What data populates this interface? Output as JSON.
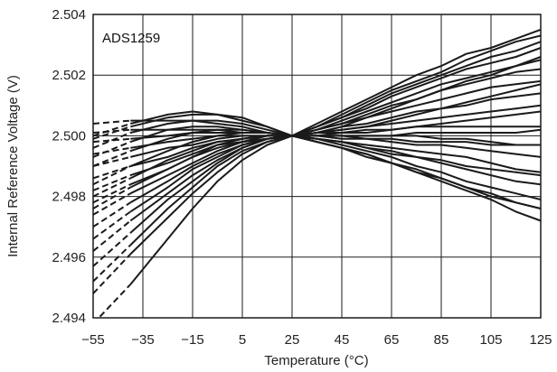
{
  "chart_data": {
    "type": "line",
    "title": "",
    "xlabel": "Temperature (°C)",
    "ylabel": "Internal Reference Voltage (V)",
    "annotation": "ADS1259",
    "xlim": [
      -55,
      125
    ],
    "ylim": [
      2.494,
      2.504
    ],
    "x_ticks": [
      -55,
      -35,
      -15,
      5,
      25,
      45,
      65,
      85,
      105,
      125
    ],
    "x_tick_labels": [
      "−55",
      "−35",
      "−15",
      "5",
      "25",
      "45",
      "65",
      "85",
      "105",
      "125"
    ],
    "y_ticks": [
      2.494,
      2.496,
      2.498,
      2.5,
      2.502,
      2.504
    ],
    "y_tick_labels": [
      "2.494",
      "2.496",
      "2.498",
      "2.500",
      "2.502",
      "2.504"
    ],
    "grid": true,
    "line_color": "#1a1a1a",
    "extrapolated_below": -40,
    "x": [
      -55,
      -40,
      -25,
      -15,
      -5,
      5,
      15,
      25,
      35,
      45,
      55,
      65,
      75,
      85,
      95,
      105,
      115,
      125
    ],
    "series": [
      {
        "values": [
          2.4938,
          2.4951,
          2.4966,
          2.4976,
          2.4985,
          2.4992,
          2.4997,
          2.5,
          2.5004,
          2.5008,
          2.5012,
          2.5016,
          2.502,
          2.5023,
          2.5027,
          2.5029,
          2.5032,
          2.5035
        ]
      },
      {
        "values": [
          2.4948,
          2.4961,
          2.4973,
          2.4981,
          2.4988,
          2.4994,
          2.4998,
          2.5,
          2.5003,
          2.5007,
          2.5011,
          2.5015,
          2.5018,
          2.5021,
          2.5025,
          2.5028,
          2.5031,
          2.5033
        ]
      },
      {
        "values": [
          2.4952,
          2.4964,
          2.4976,
          2.4983,
          2.499,
          2.4995,
          2.4998,
          2.5,
          2.5003,
          2.5006,
          2.501,
          2.5014,
          2.5017,
          2.502,
          2.5023,
          2.5026,
          2.5028,
          2.5031
        ]
      },
      {
        "values": [
          2.4957,
          2.4968,
          2.4979,
          2.4985,
          2.4991,
          2.4996,
          2.4999,
          2.5,
          2.5003,
          2.5006,
          2.5009,
          2.5013,
          2.5016,
          2.5019,
          2.5022,
          2.5024,
          2.5026,
          2.5029
        ]
      },
      {
        "values": [
          2.4962,
          2.4972,
          2.4981,
          2.4987,
          2.4992,
          2.4996,
          2.4999,
          2.5,
          2.5002,
          2.5005,
          2.5008,
          2.5011,
          2.5014,
          2.5017,
          2.5019,
          2.5021,
          2.5023,
          2.5025
        ]
      },
      {
        "values": [
          2.4966,
          2.4975,
          2.4983,
          2.4989,
          2.4993,
          2.4997,
          2.4999,
          2.5,
          2.5002,
          2.5004,
          2.5007,
          2.501,
          2.5012,
          2.5015,
          2.5017,
          2.5019,
          2.5021,
          2.5022
        ]
      },
      {
        "values": [
          2.497,
          2.4978,
          2.4985,
          2.499,
          2.4994,
          2.4997,
          2.4999,
          2.5,
          2.5002,
          2.5004,
          2.5006,
          2.5008,
          2.501,
          2.5012,
          2.5014,
          2.5016,
          2.5017,
          2.5018
        ]
      },
      {
        "values": [
          2.4974,
          2.4981,
          2.4987,
          2.4991,
          2.4995,
          2.4998,
          2.4999,
          2.5,
          2.5001,
          2.5003,
          2.5004,
          2.5006,
          2.5008,
          2.5009,
          2.501,
          2.5012,
          2.5013,
          2.5014
        ]
      },
      {
        "values": [
          2.4978,
          2.4984,
          2.4989,
          2.4993,
          2.4996,
          2.4998,
          2.5,
          2.5,
          2.5001,
          2.5002,
          2.5003,
          2.5004,
          2.5005,
          2.5006,
          2.5007,
          2.5008,
          2.5009,
          2.501
        ]
      },
      {
        "values": [
          2.4982,
          2.4987,
          2.4991,
          2.4994,
          2.4997,
          2.4999,
          2.5,
          2.5,
          2.5001,
          2.5001,
          2.5002,
          2.5002,
          2.5003,
          2.5003,
          2.5003,
          2.5003,
          2.5003,
          2.5003
        ]
      },
      {
        "values": [
          2.4986,
          2.499,
          2.4993,
          2.4996,
          2.4998,
          2.4999,
          2.5,
          2.5,
          2.5,
          2.5,
          2.5,
          2.5,
          2.5,
          2.4999,
          2.4999,
          2.4998,
          2.4997,
          2.4997
        ]
      },
      {
        "values": [
          2.499,
          2.4993,
          2.4996,
          2.4997,
          2.4999,
          2.5,
          2.5,
          2.5,
          2.5,
          2.4999,
          2.4999,
          2.4998,
          2.4997,
          2.4997,
          2.4996,
          2.4995,
          2.4994,
          2.4993
        ]
      },
      {
        "values": [
          2.4994,
          2.4996,
          2.4998,
          2.4999,
          2.5,
          2.5,
          2.5,
          2.5,
          2.4999,
          2.4998,
          2.4997,
          2.4996,
          2.4995,
          2.4994,
          2.4993,
          2.4991,
          2.4989,
          2.4988
        ]
      },
      {
        "values": [
          2.4998,
          2.4999,
          2.5,
          2.5001,
          2.5001,
          2.5001,
          2.5001,
          2.5,
          2.4999,
          2.4998,
          2.4996,
          2.4994,
          2.4993,
          2.4991,
          2.4989,
          2.4987,
          2.4985,
          2.4984
        ]
      },
      {
        "values": [
          2.5001,
          2.5002,
          2.5002,
          2.5002,
          2.5002,
          2.5001,
          2.5001,
          2.5,
          2.4999,
          2.4997,
          2.4995,
          2.4993,
          2.499,
          2.4988,
          2.4985,
          2.4983,
          2.4981,
          2.4979
        ]
      },
      {
        "values": [
          2.5004,
          2.5005,
          2.5005,
          2.5005,
          2.5004,
          2.5003,
          2.5001,
          2.5,
          2.4998,
          2.4996,
          2.4994,
          2.4991,
          2.4989,
          2.4986,
          2.4983,
          2.498,
          2.4978,
          2.4976
        ]
      },
      {
        "values": [
          2.4999,
          2.5003,
          2.5006,
          2.5007,
          2.5007,
          2.5005,
          2.5003,
          2.5,
          2.4998,
          2.4996,
          2.4993,
          2.4991,
          2.4988,
          2.4986,
          2.4983,
          2.4981,
          2.4978,
          2.4976
        ]
      },
      {
        "values": [
          2.5,
          2.5004,
          2.5007,
          2.5008,
          2.5007,
          2.5006,
          2.5003,
          2.5,
          2.4998,
          2.4996,
          2.4994,
          2.4991,
          2.4988,
          2.4985,
          2.4982,
          2.4979,
          2.4975,
          2.4972
        ]
      },
      {
        "values": [
          2.4996,
          2.5001,
          2.5004,
          2.5005,
          2.5005,
          2.5004,
          2.5002,
          2.5,
          2.4999,
          2.4998,
          2.4996,
          2.4995,
          2.4993,
          2.4992,
          2.499,
          2.4989,
          2.4988,
          2.4987
        ]
      },
      {
        "values": [
          2.4993,
          2.4998,
          2.5002,
          2.5003,
          2.5003,
          2.5002,
          2.5001,
          2.5,
          2.5,
          2.5,
          2.4999,
          2.4999,
          2.4998,
          2.4998,
          2.4998,
          2.4997,
          2.4997,
          2.4997
        ]
      },
      {
        "values": [
          2.499,
          2.4995,
          2.4999,
          2.5001,
          2.5002,
          2.5002,
          2.5001,
          2.5,
          2.5,
          2.5,
          2.5,
          2.5,
          2.5001,
          2.5001,
          2.5001,
          2.5001,
          2.5001,
          2.5002
        ]
      },
      {
        "values": [
          2.4984,
          2.499,
          2.4995,
          2.4998,
          2.5,
          2.5001,
          2.5001,
          2.5,
          2.5,
          2.5001,
          2.5001,
          2.5002,
          2.5003,
          2.5004,
          2.5005,
          2.5006,
          2.5007,
          2.5008
        ]
      },
      {
        "values": [
          2.498,
          2.4986,
          2.4992,
          2.4995,
          2.4998,
          2.4999,
          2.5,
          2.5,
          2.5001,
          2.5002,
          2.5003,
          2.5005,
          2.5007,
          2.5009,
          2.5011,
          2.5013,
          2.5015,
          2.5017
        ]
      },
      {
        "values": [
          2.4976,
          2.4983,
          2.4989,
          2.4993,
          2.4997,
          2.4998,
          2.4999,
          2.5,
          2.5001,
          2.5003,
          2.5006,
          2.5009,
          2.5012,
          2.5015,
          2.5018,
          2.502,
          2.5023,
          2.5026
        ]
      }
    ]
  }
}
